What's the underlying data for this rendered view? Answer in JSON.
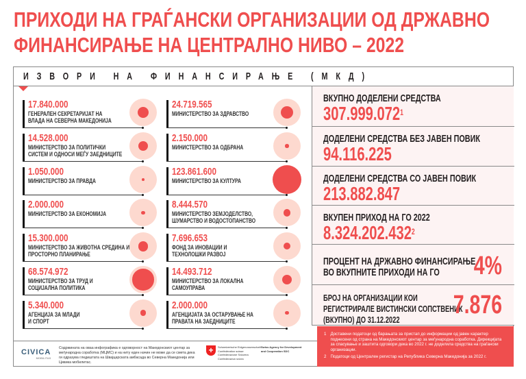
{
  "title": {
    "line1": "ПРИХОДИ НА ГРАЃАНСКИ ОРГАНИЗАЦИИ ОД ДРЖАВНО",
    "line2": "ФИНАНСИРАЊЕ НА ЦЕНТРАЛНО НИВО – 2022"
  },
  "section_header": "ИЗВОРИ НА ФИНАНСИРАЊЕ (МКД)",
  "colors": {
    "accent": "#ef4e4e",
    "circle_bg": "#fdd9cf",
    "panel_bg": "#fdf3f3"
  },
  "sources": [
    {
      "amount": "17.840.000",
      "value": 17840000,
      "label": "ГЕНЕРАЛЕН СЕКРЕТАРИЈАТ НА\nВЛАДА НА СЕВЕРНА МАКЕДОНИЈА"
    },
    {
      "amount": "24.719.565",
      "value": 24719565,
      "label": "МИНИСТЕРСТВО ЗА ЗДРАВСТВО"
    },
    {
      "amount": "14.528.000",
      "value": 14528000,
      "label": "МИНИСТЕРСТВО ЗА ПОЛИТИЧКИ\nСИСТЕМ И ОДНОСИ МЕЃУ ЗАЕДНИЦИТЕ"
    },
    {
      "amount": "2.150.000",
      "value": 2150000,
      "label": "МИНИСТЕРСТВО ЗА ОДБРАНА"
    },
    {
      "amount": "1.050.000",
      "value": 1050000,
      "label": "МИНИСТЕРСТВО ЗА ПРАВДА"
    },
    {
      "amount": "123.861.600",
      "value": 123861600,
      "label": "МИНИСТЕРСТВО ЗА КУЛТУРА"
    },
    {
      "amount": "2.000.000",
      "value": 2000000,
      "label": "МИНИСТЕРСТВО ЗА ЕКОНОМИЈА"
    },
    {
      "amount": "8.444.570",
      "value": 8444570,
      "label": "МИНИСТЕРСТВО ЗЕМЈОДЕЛСТВО,\nШУМАРСТВО И ВОДОСТОПАНСТВО"
    },
    {
      "amount": "15.300.000",
      "value": 15300000,
      "label": "МИНИСТЕРСТВО ЗА ЖИВОТНА СРЕДИНА И\nПРОСТОРНО ПЛАНИРАЊЕ"
    },
    {
      "amount": "7.696.653",
      "value": 7696653,
      "label": "ФОНД ЗА ИНОВАЦИИ И\nТЕХНОЛОШКИ РАЗВОЈ"
    },
    {
      "amount": "68.574.972",
      "value": 68574972,
      "label": "МИНИСТЕРСТВО ЗА ТРУД И\nСОЦИЈАЛНА ПОЛИТИКА"
    },
    {
      "amount": "14.493.712",
      "value": 14493712,
      "label": "МИНИСТЕРСТВО ЗА ЛОКАЛНА\nСАМОУПРАВА"
    },
    {
      "amount": "5.340.000",
      "value": 5340000,
      "label": "АГЕНЦИЈА ЗА МЛАДИ\nИ СПОРТ"
    },
    {
      "amount": "2.000.000",
      "value": 2000000,
      "label": "АГЕНЦИЈАТА ЗА ОСТАРУВАЊЕ НА\nПРАВАТА НА ЗАЕДНИЦИТЕ"
    }
  ],
  "stats": [
    {
      "label": "ВКУПНО ДОДЕЛЕНИ СРЕДСТВА",
      "value": "307.999.072",
      "note": "1"
    },
    {
      "label": "ДОДЕЛЕНИ СРЕДСТВА БЕЗ ЈАВЕН ПОВИК",
      "value": "94.116.225"
    },
    {
      "label": "ДОДЕЛЕНИ СРЕДСТВА СО ЈАВЕН ПОВИК",
      "value": "213.882.847"
    },
    {
      "label": "ВКУПЕН ПРИХОД НА ГО 2022",
      "value": "8.324.202.432",
      "note": "2"
    },
    {
      "label": "ПРОЦЕНТ НА ДРЖАВНО ФИНАНСИРАЊЕ\nВО ВКУПНИТЕ ПРИХОДИ НА ГО",
      "big": "4%"
    },
    {
      "label": "БРОЈ НА ОРГАНИЗАЦИИ КОИ\nРЕГИСТРИРАЛЕ ВИСТИНСКИ СОПСТВЕНИК\n(ВКУПНО) ДО 31.12.2022",
      "big": "7.876"
    }
  ],
  "footnotes": [
    {
      "n": "1",
      "text": "Доставени податоци од барањата за пристап до информации од јавен карактер поднесени од страна на Македонскиот центар за меѓународна соработка. Дирекцијата за спасување и заштита одговори дека во 2022 г. не доделила средства на граѓански организации."
    },
    {
      "n": "2",
      "text": "Податоци од Централен регистар на Република Северна Македонија за 2022 г."
    }
  ],
  "footer": {
    "civica": "CIVICA",
    "civica_sub": "MOBILITAS",
    "disclaimer": "Содржината на оваа инфографика е одговорност на Македонскиот центар за меѓународна соработка (МЦМС) и на ниту еден начин не може да се смета дека ги одразува гледиштата на Швајцарската амбасада во Северна Македонија или Цивика мобилитас.",
    "swiss": "Schweizerische Eidgenossenschaft\nConfédération suisse\nConfederazione Svizzera\nConfederaziun svizra",
    "sdc": "Swiss Agency for Development\nand Cooperation SDC"
  }
}
